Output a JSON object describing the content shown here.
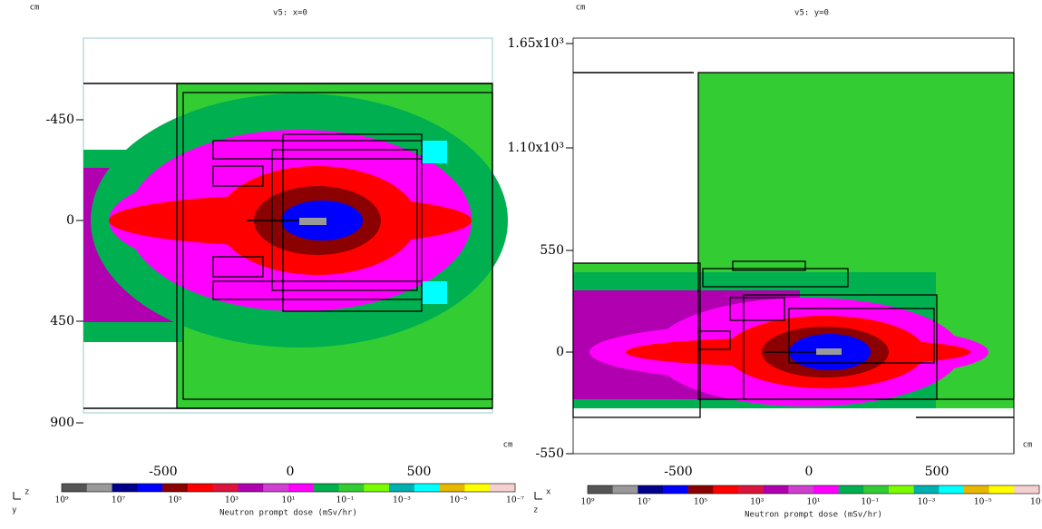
{
  "panels": [
    {
      "title": "v5: x=0",
      "v_unit": "cm",
      "h_unit": "cm",
      "yticks": [
        "-450",
        "0",
        "450",
        "900"
      ],
      "xticks": [
        "-500",
        "0",
        "500"
      ],
      "orientation": [
        "z",
        "y"
      ]
    },
    {
      "title": "v5: y=0",
      "v_unit": "cm",
      "h_unit": "cm",
      "yticks": [
        "1.65x10³",
        "1.10x10³",
        "550",
        "0",
        "-550"
      ],
      "xticks": [
        "-500",
        "0",
        "500"
      ],
      "orientation": [
        "x",
        "z"
      ]
    }
  ],
  "colorbar": {
    "labels": [
      "10⁹",
      "10⁷",
      "10⁵",
      "10³",
      "10¹",
      "10⁻¹",
      "10⁻³",
      "10⁻⁵",
      "10⁻⁷"
    ],
    "title": "Neutron prompt dose (mSv/hr)",
    "colors": [
      "#555555",
      "#999999",
      "#00008b",
      "#0000ff",
      "#8b0000",
      "#ff0000",
      "#dc143c",
      "#b000b0",
      "#d040d0",
      "#ff00ff",
      "#00b050",
      "#33cc33",
      "#7cfc00",
      "#00b0b0",
      "#00ffff",
      "#e6b800",
      "#ffff00",
      "#f5d0d0"
    ]
  }
}
